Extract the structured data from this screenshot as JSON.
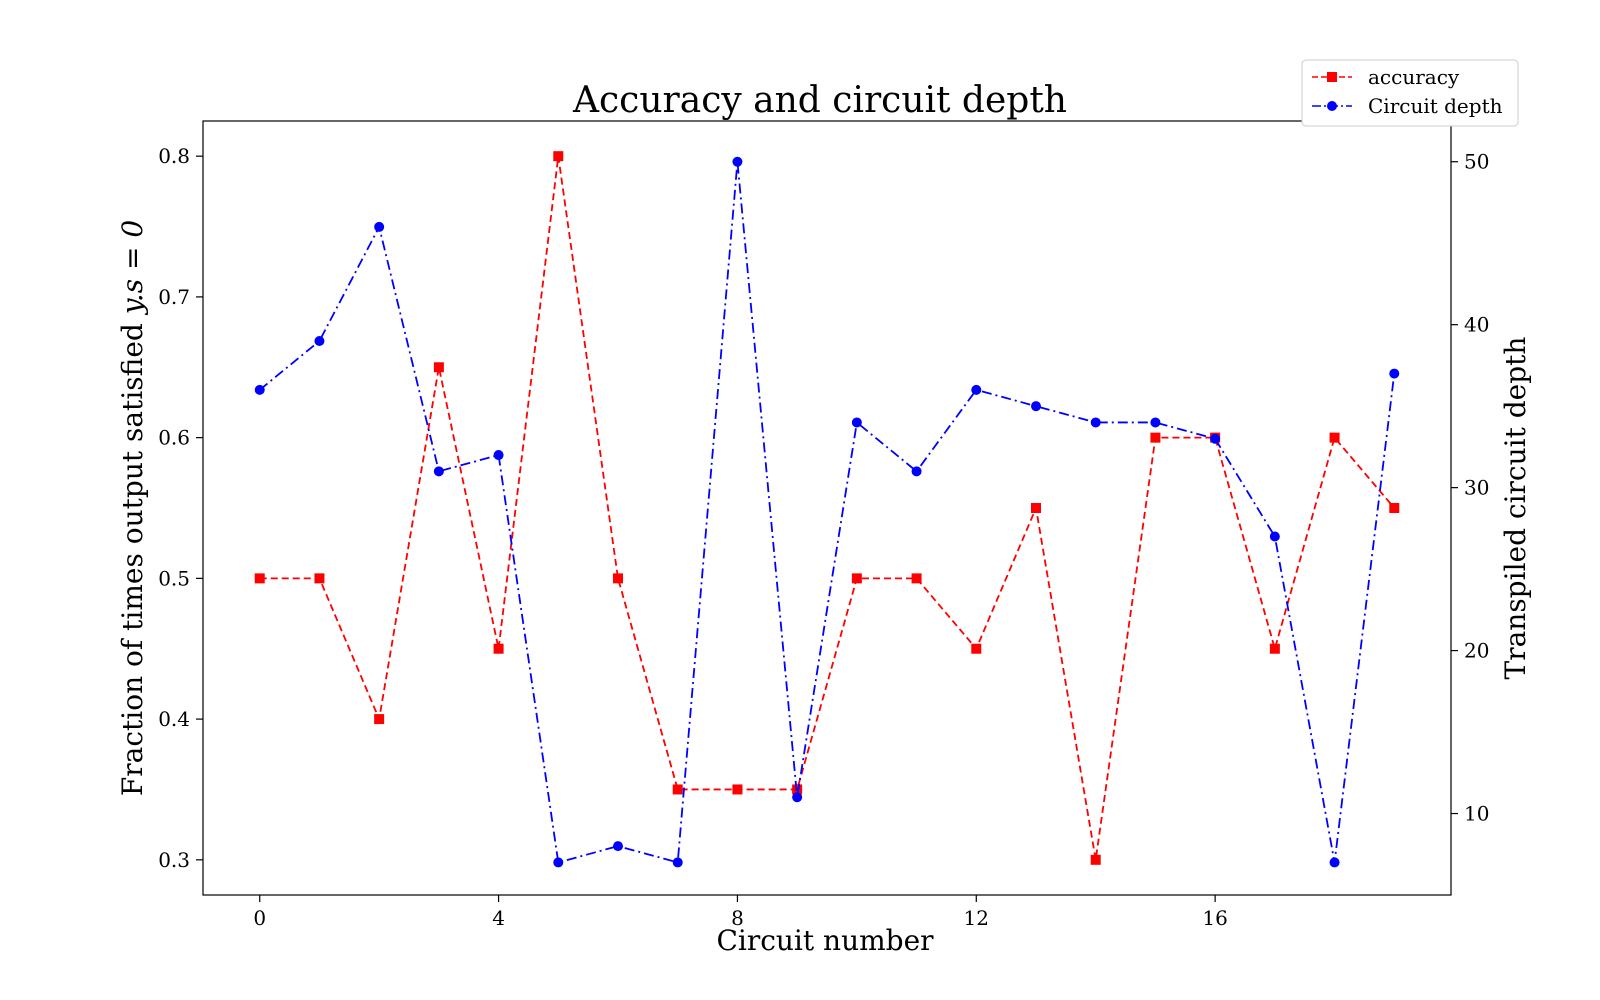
{
  "chart_data": {
    "type": "line",
    "title": "Accuracy and circuit depth",
    "xlabel": "Circuit number",
    "ylabel_left_prefix": "Fraction of times output satisfied ",
    "ylabel_left_math": "y.s = 0",
    "ylabel_right": "Transpiled circuit depth",
    "x": [
      0,
      1,
      2,
      3,
      4,
      5,
      6,
      7,
      8,
      9,
      10,
      11,
      12,
      13,
      14,
      15,
      16,
      17,
      18,
      19
    ],
    "xlim": [
      -0.95,
      19.95
    ],
    "xticks": [
      0,
      4,
      8,
      12,
      16
    ],
    "xtick_labels": [
      "0",
      "4",
      "8",
      "12",
      "16"
    ],
    "ylim_left": [
      0.275,
      0.825
    ],
    "yticks_left": [
      0.3,
      0.4,
      0.5,
      0.6,
      0.7,
      0.8
    ],
    "ytick_labels_left": [
      "0.3",
      "0.4",
      "0.5",
      "0.6",
      "0.7",
      "0.8"
    ],
    "ylim_right": [
      5.0,
      52.5
    ],
    "yticks_right": [
      10,
      20,
      30,
      40,
      50
    ],
    "ytick_labels_right": [
      "10",
      "20",
      "30",
      "40",
      "50"
    ],
    "grid": false,
    "legend_position": "top-right",
    "series": [
      {
        "name": "accuracy",
        "axis": "left",
        "color": "#ff0000",
        "marker": "square",
        "linestyle": "dashed",
        "values": [
          0.5,
          0.5,
          0.4,
          0.65,
          0.45,
          0.8,
          0.5,
          0.35,
          0.35,
          0.35,
          0.5,
          0.5,
          0.45,
          0.55,
          0.3,
          0.6,
          0.6,
          0.45,
          0.6,
          0.55
        ]
      },
      {
        "name": "Circuit depth",
        "axis": "right",
        "color": "#0000ff",
        "marker": "circle",
        "linestyle": "dashdot",
        "values": [
          36,
          39,
          46,
          31,
          32,
          7,
          8,
          7,
          50,
          11,
          34,
          31,
          36,
          35,
          34,
          34,
          33,
          27,
          7,
          37
        ]
      }
    ]
  }
}
